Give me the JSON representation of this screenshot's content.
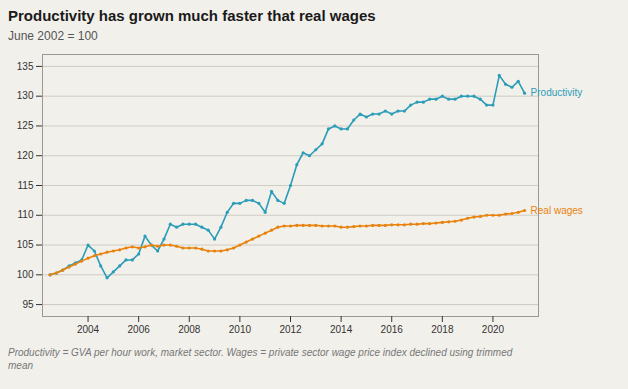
{
  "chart_data": {
    "type": "line",
    "title": "Productivity has grown much faster that real wages",
    "subtitle": "June 2002 = 100",
    "footnote": "Productivity = GVA per hour work, market sector. Wages = private sector wage price index declined using trimmed\nmean",
    "x": [
      2002.5,
      2002.75,
      2003.0,
      2003.25,
      2003.5,
      2003.75,
      2004.0,
      2004.25,
      2004.5,
      2004.75,
      2005.0,
      2005.25,
      2005.5,
      2005.75,
      2006.0,
      2006.25,
      2006.5,
      2006.75,
      2007.0,
      2007.25,
      2007.5,
      2007.75,
      2008.0,
      2008.25,
      2008.5,
      2008.75,
      2009.0,
      2009.25,
      2009.5,
      2009.75,
      2010.0,
      2010.25,
      2010.5,
      2010.75,
      2011.0,
      2011.25,
      2011.5,
      2011.75,
      2012.0,
      2012.25,
      2012.5,
      2012.75,
      2013.0,
      2013.25,
      2013.5,
      2013.75,
      2014.0,
      2014.25,
      2014.5,
      2014.75,
      2015.0,
      2015.25,
      2015.5,
      2015.75,
      2016.0,
      2016.25,
      2016.5,
      2016.75,
      2017.0,
      2017.25,
      2017.5,
      2017.75,
      2018.0,
      2018.25,
      2018.5,
      2018.75,
      2019.0,
      2019.25,
      2019.5,
      2019.75,
      2020.0,
      2020.25,
      2020.5,
      2020.75,
      2021.0,
      2021.25
    ],
    "series": [
      {
        "name": "Productivity",
        "color": "#2b9db8",
        "values": [
          100.0,
          100.3,
          100.8,
          101.5,
          102.0,
          102.5,
          105.0,
          104.0,
          101.5,
          99.5,
          100.5,
          101.5,
          102.5,
          102.5,
          103.5,
          106.5,
          105.0,
          104.0,
          106.0,
          108.5,
          108.0,
          108.5,
          108.5,
          108.5,
          108.0,
          107.5,
          106.0,
          108.0,
          110.5,
          112.0,
          112.0,
          112.5,
          112.5,
          112.0,
          110.5,
          114.0,
          112.5,
          112.0,
          115.0,
          118.5,
          120.5,
          120.0,
          121.0,
          122.0,
          124.5,
          125.0,
          124.5,
          124.5,
          126.0,
          127.0,
          126.5,
          127.0,
          127.0,
          127.5,
          127.0,
          127.5,
          127.5,
          128.5,
          129.0,
          129.0,
          129.5,
          129.5,
          130.0,
          129.5,
          129.5,
          130.0,
          130.0,
          130.0,
          129.5,
          128.5,
          128.5,
          133.5,
          132.0,
          131.5,
          132.5,
          130.5
        ]
      },
      {
        "name": "Real wages",
        "color": "#e8820c",
        "values": [
          100.0,
          100.3,
          100.8,
          101.3,
          101.8,
          102.3,
          102.8,
          103.2,
          103.5,
          103.8,
          104.0,
          104.2,
          104.5,
          104.7,
          104.5,
          104.7,
          105.0,
          104.8,
          105.0,
          105.0,
          104.8,
          104.5,
          104.5,
          104.5,
          104.3,
          104.0,
          104.0,
          104.0,
          104.2,
          104.5,
          105.0,
          105.5,
          106.0,
          106.5,
          107.0,
          107.5,
          108.0,
          108.2,
          108.2,
          108.3,
          108.3,
          108.3,
          108.3,
          108.2,
          108.2,
          108.2,
          108.0,
          108.0,
          108.1,
          108.2,
          108.2,
          108.3,
          108.3,
          108.3,
          108.4,
          108.4,
          108.4,
          108.5,
          108.5,
          108.6,
          108.6,
          108.7,
          108.8,
          108.9,
          109.0,
          109.2,
          109.5,
          109.7,
          109.8,
          110.0,
          110.0,
          110.0,
          110.2,
          110.3,
          110.5,
          110.8
        ]
      }
    ],
    "marker": "circle",
    "xlim": [
      2002.2,
      2021.8
    ],
    "ylim": [
      93,
      137
    ],
    "xticks": [
      2004,
      2006,
      2008,
      2010,
      2012,
      2014,
      2016,
      2018,
      2020
    ],
    "yticks": [
      95,
      100,
      105,
      110,
      115,
      120,
      125,
      130,
      135
    ],
    "grid": true
  }
}
